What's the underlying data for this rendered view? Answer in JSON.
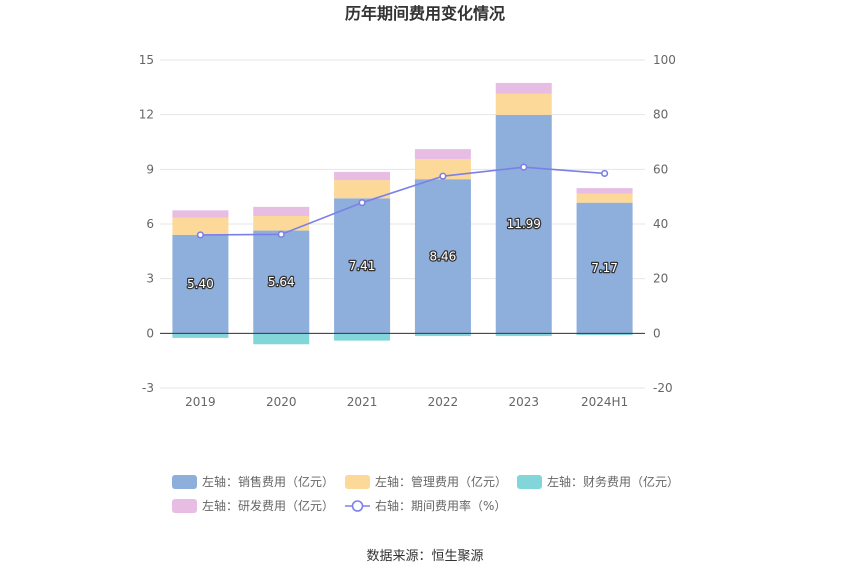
{
  "chart_data": {
    "type": "bar",
    "title": "历年期间费用变化情况",
    "categories": [
      "2019",
      "2020",
      "2021",
      "2022",
      "2023",
      "2024H1"
    ],
    "left_axis": {
      "min": -3,
      "max": 15,
      "ticks": [
        -3,
        0,
        3,
        6,
        9,
        12,
        15
      ]
    },
    "right_axis": {
      "min": -20,
      "max": 100,
      "ticks": [
        -20,
        0,
        20,
        40,
        60,
        80,
        100
      ]
    },
    "series": [
      {
        "name": "左轴：销售费用（亿元）",
        "axis": "left",
        "kind": "bar",
        "color": "#8eaedb",
        "values": [
          5.4,
          5.64,
          7.41,
          8.46,
          11.99,
          7.17
        ],
        "labels": [
          "5.40",
          "5.64",
          "7.41",
          "8.46",
          "11.99",
          "7.17"
        ]
      },
      {
        "name": "左轴：管理费用（亿元）",
        "axis": "left",
        "kind": "bar",
        "color": "#fcd899",
        "values": [
          0.95,
          0.8,
          1.0,
          1.1,
          1.15,
          0.5
        ]
      },
      {
        "name": "左轴：财务费用（亿元）",
        "axis": "left",
        "kind": "bar",
        "color": "#82d6d9",
        "values": [
          -0.25,
          -0.6,
          -0.4,
          -0.15,
          -0.15,
          -0.1
        ]
      },
      {
        "name": "左轴：研发费用（亿元）",
        "axis": "left",
        "kind": "bar",
        "color": "#e7bde3",
        "values": [
          0.4,
          0.5,
          0.45,
          0.55,
          0.6,
          0.3
        ]
      },
      {
        "name": "右轴：期间费用率（%）",
        "axis": "right",
        "kind": "line",
        "color": "#7b80e8",
        "values": [
          36.0,
          36.2,
          47.8,
          57.5,
          60.8,
          58.5
        ]
      }
    ],
    "grid": true,
    "legend_position": "bottom"
  },
  "source": "数据来源：恒生聚源"
}
